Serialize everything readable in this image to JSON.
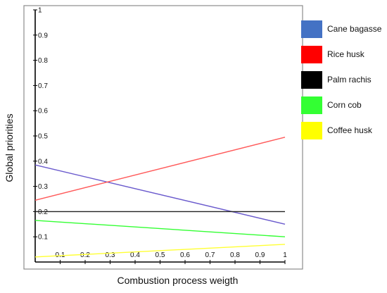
{
  "chart_data": {
    "type": "line",
    "title": "",
    "xlabel": "Combustion process weigth",
    "ylabel": "Global priorities",
    "xlim": [
      0,
      1
    ],
    "ylim": [
      0,
      1
    ],
    "x_ticks": [
      "0.1",
      "0.2",
      "0.3",
      "0.4",
      "0.5",
      "0.6",
      "0.7",
      "0.8",
      "0.9",
      "1"
    ],
    "y_ticks": [
      "0.1",
      "0.2",
      "0.3",
      "0.4",
      "0.5",
      "0.6",
      "0.7",
      "0.8",
      "0.9",
      "1"
    ],
    "grid": false,
    "legend_position": "right",
    "series": [
      {
        "name": "Cane bagasse",
        "color": "#4472C4",
        "line_color": "#6a5acd",
        "x": [
          0,
          1
        ],
        "y": [
          0.385,
          0.15
        ]
      },
      {
        "name": "Rice husk",
        "color": "#FF0000",
        "line_color": "#ff5a5a",
        "x": [
          0,
          1
        ],
        "y": [
          0.245,
          0.495
        ]
      },
      {
        "name": "Palm rachis",
        "color": "#000000",
        "line_color": "#222222",
        "x": [
          0,
          1
        ],
        "y": [
          0.2,
          0.2
        ]
      },
      {
        "name": "Corn cob",
        "color": "#33FF33",
        "line_color": "#33ff33",
        "x": [
          0,
          1
        ],
        "y": [
          0.165,
          0.1
        ]
      },
      {
        "name": "Coffee husk",
        "color": "#FFFF00",
        "line_color": "#ffff33",
        "x": [
          0,
          1
        ],
        "y": [
          0.02,
          0.07
        ]
      }
    ]
  }
}
